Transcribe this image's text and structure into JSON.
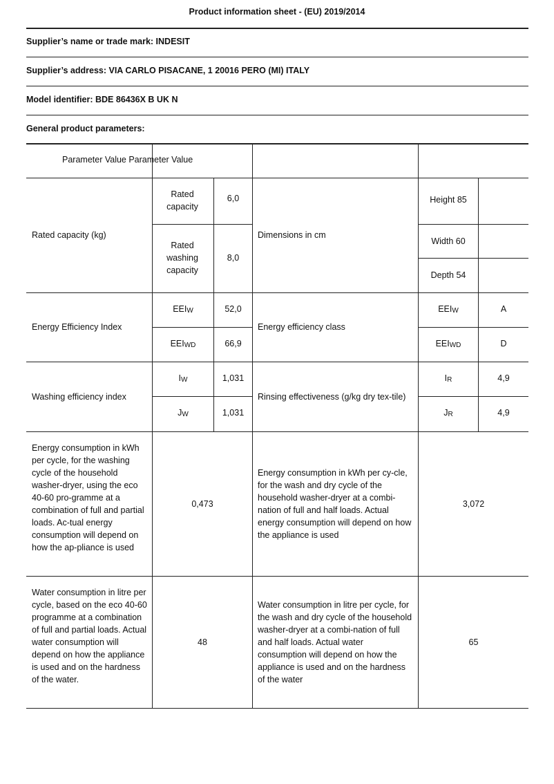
{
  "title": "Product information sheet - (EU) 2019/2014",
  "supplier_name": "Supplier’s name or trade mark: INDESIT",
  "supplier_address": "Supplier’s address: VIA CARLO PISACANE, 1 20016 PERO (MI) ITALY",
  "model_identifier": "Model identifier: BDE 86436X B UK N",
  "general_parameters": "General product parameters:",
  "table": {
    "header": "Parameter Value Parameter Value",
    "rated_capacity": {
      "label": "Rated capacity (kg)",
      "sub1": "Rated capacity",
      "val1": "6,0",
      "sub2": "Rated washing capacity",
      "val2": "8,0"
    },
    "dimensions": {
      "label": "Dimensions in cm",
      "height": "Height 85",
      "width": "Width 60",
      "depth": "Depth 54"
    },
    "eei": {
      "label": "Energy Efficiency Index",
      "sub1_main": "EEI",
      "sub1_sub": "W",
      "val1": "52,0",
      "sub2_main": "EEI",
      "sub2_sub": "WD",
      "val2": "66,9"
    },
    "eec": {
      "label": "Energy efficiency class",
      "sub1_main": "EEI",
      "sub1_sub": "W",
      "val1": "A",
      "sub2_main": "EEI",
      "sub2_sub": "WD",
      "val2": "D"
    },
    "wash_eff": {
      "label": "Washing efficiency index",
      "sub1_main": "I",
      "sub1_sub": "W",
      "val1": "1,031",
      "sub2_main": "J",
      "sub2_sub": "W",
      "val2": "1,031"
    },
    "rinse": {
      "label": "Rinsing effectiveness (g/kg dry tex-tile)",
      "sub1_main": "I",
      "sub1_sub": "R",
      "val1": "4,9",
      "sub2_main": "J",
      "sub2_sub": "R",
      "val2": "4,9"
    },
    "energy_wash": {
      "label": "Energy consumption in kWh per cycle, for the washing cycle of the household washer-dryer, using the eco 40-60 pro-gramme at a combination of full and partial loads. Ac-tual energy consumption will depend on how the ap-pliance is used",
      "value": "0,473"
    },
    "energy_washdry": {
      "label": "Energy consumption in kWh per cy-cle, for the wash and dry cycle of the household washer-dryer at a combi-nation of full and half loads. Actual energy consumption will depend on how the appliance is used",
      "value": "3,072"
    },
    "water_wash": {
      "label": "Water consumption in litre per cycle, based on the eco 40-60 programme at a combination of full and partial loads. Actual water consumption will depend on how the appliance is used and on the hardness of the water.",
      "value": "48"
    },
    "water_washdry": {
      "label": "Water consumption in litre per cycle, for the wash and dry cycle of the household washer-dryer at a combi-nation of full and half loads. Actual water consumption will depend on how the appliance is used and on the hardness of the water",
      "value": "65"
    }
  }
}
